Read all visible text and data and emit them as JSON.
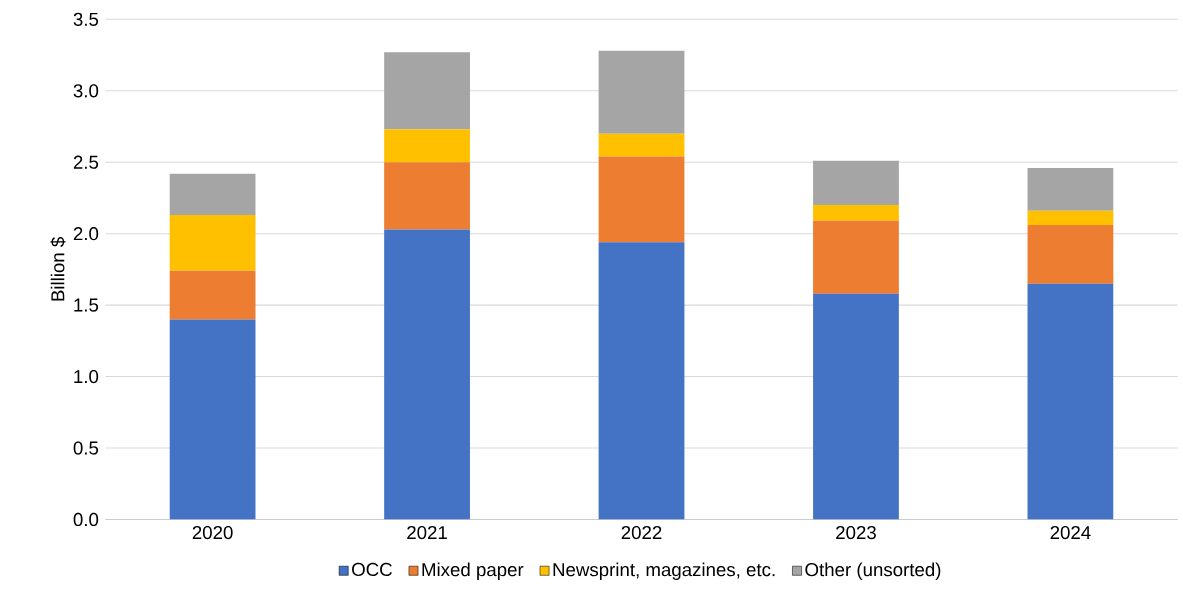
{
  "chart_data": {
    "type": "bar",
    "stacked": true,
    "ylabel": "Billion $",
    "categories": [
      "2020",
      "2021",
      "2022",
      "2023",
      "2024"
    ],
    "series": [
      {
        "name": "OCC",
        "color": "#4472c4",
        "values": [
          1.4,
          2.03,
          1.94,
          1.58,
          1.65
        ]
      },
      {
        "name": "Mixed paper",
        "color": "#ed7d31",
        "values": [
          0.34,
          0.47,
          0.6,
          0.51,
          0.41
        ]
      },
      {
        "name": "Newsprint, magazines, etc.",
        "color": "#ffc000",
        "values": [
          0.39,
          0.23,
          0.16,
          0.11,
          0.1
        ]
      },
      {
        "name": "Other (unsorted)",
        "color": "#a5a5a5",
        "values": [
          0.29,
          0.54,
          0.58,
          0.31,
          0.3
        ]
      }
    ],
    "ylim": [
      0,
      3.5
    ],
    "yticks": [
      {
        "value": 0,
        "label": "0.0"
      },
      0.5,
      {
        "value": 1,
        "label": "1.0"
      },
      1.5,
      {
        "value": 2,
        "label": "2.0"
      },
      2.5,
      {
        "value": 3,
        "label": "3.0"
      },
      3.5
    ],
    "grid": "y",
    "legend": "bottom"
  }
}
